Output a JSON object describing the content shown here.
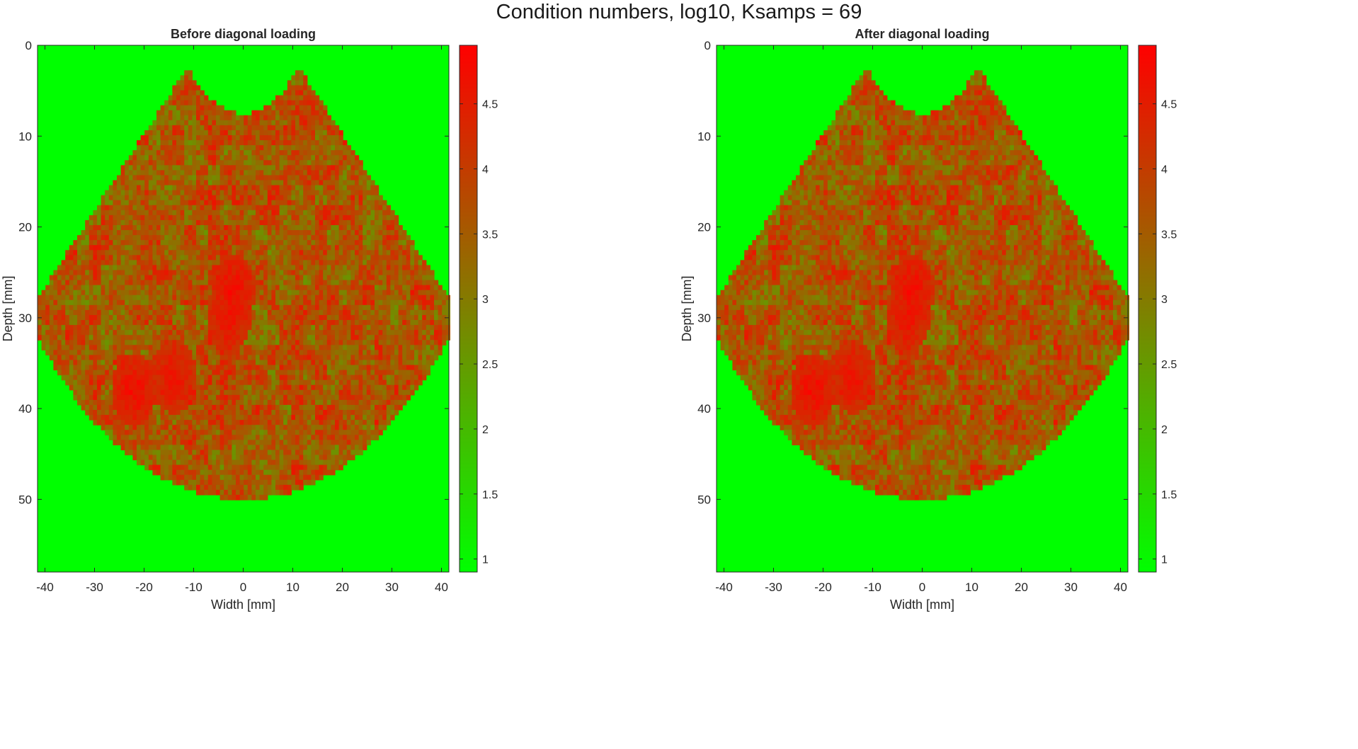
{
  "figure": {
    "title": "Condition numbers, log10, Ksamps = 69"
  },
  "colors": {
    "low": "#00ff00",
    "high": "#ff0000",
    "axis": "#262626"
  },
  "chart_data": [
    {
      "type": "heatmap",
      "title": "Before diagonal loading",
      "xlabel": "Width [mm]",
      "ylabel": "Depth [mm]",
      "xlim": [
        -41.5,
        41.5
      ],
      "ylim": [
        0,
        58
      ],
      "y_reversed": true,
      "xticks": [
        -40,
        -30,
        -20,
        -10,
        0,
        10,
        20,
        30,
        40
      ],
      "yticks": [
        0,
        10,
        20,
        30,
        40,
        50
      ],
      "colorbar": {
        "min": 0.9,
        "max": 4.95,
        "ticks": [
          1,
          1.5,
          2,
          2.5,
          3,
          3.5,
          4,
          4.5
        ],
        "colormap": "green-to-red"
      },
      "background_value": 0.9,
      "sector": {
        "apex_depth": -7,
        "inner_radius": 14.5,
        "outer_radius": 57,
        "half_angle_deg": 50,
        "value_range": [
          2.5,
          4.7
        ]
      },
      "hotspots": [
        {
          "x": -22,
          "y": 38,
          "value": 4.8
        },
        {
          "x": -2,
          "y": 27,
          "value": 4.8
        },
        {
          "x": -3,
          "y": 30,
          "value": 4.7
        },
        {
          "x": -14,
          "y": 36.5,
          "value": 4.7
        }
      ]
    },
    {
      "type": "heatmap",
      "title": "After diagonal loading",
      "xlabel": "Width [mm]",
      "ylabel": "Depth [mm]",
      "xlim": [
        -41.5,
        41.5
      ],
      "ylim": [
        0,
        58
      ],
      "y_reversed": true,
      "xticks": [
        -40,
        -30,
        -20,
        -10,
        0,
        10,
        20,
        30,
        40
      ],
      "yticks": [
        0,
        10,
        20,
        30,
        40,
        50
      ],
      "colorbar": {
        "min": 0.9,
        "max": 4.95,
        "ticks": [
          1,
          1.5,
          2,
          2.5,
          3,
          3.5,
          4,
          4.5
        ],
        "colormap": "green-to-red"
      },
      "background_value": 0.9,
      "sector": {
        "apex_depth": -7,
        "inner_radius": 14.5,
        "outer_radius": 57,
        "half_angle_deg": 50,
        "value_range": [
          2.5,
          4.7
        ]
      },
      "hotspots": [
        {
          "x": -22,
          "y": 38,
          "value": 4.8
        },
        {
          "x": -2,
          "y": 27,
          "value": 4.8
        },
        {
          "x": -3,
          "y": 30,
          "value": 4.7
        },
        {
          "x": -14,
          "y": 36.5,
          "value": 4.7
        }
      ]
    }
  ]
}
